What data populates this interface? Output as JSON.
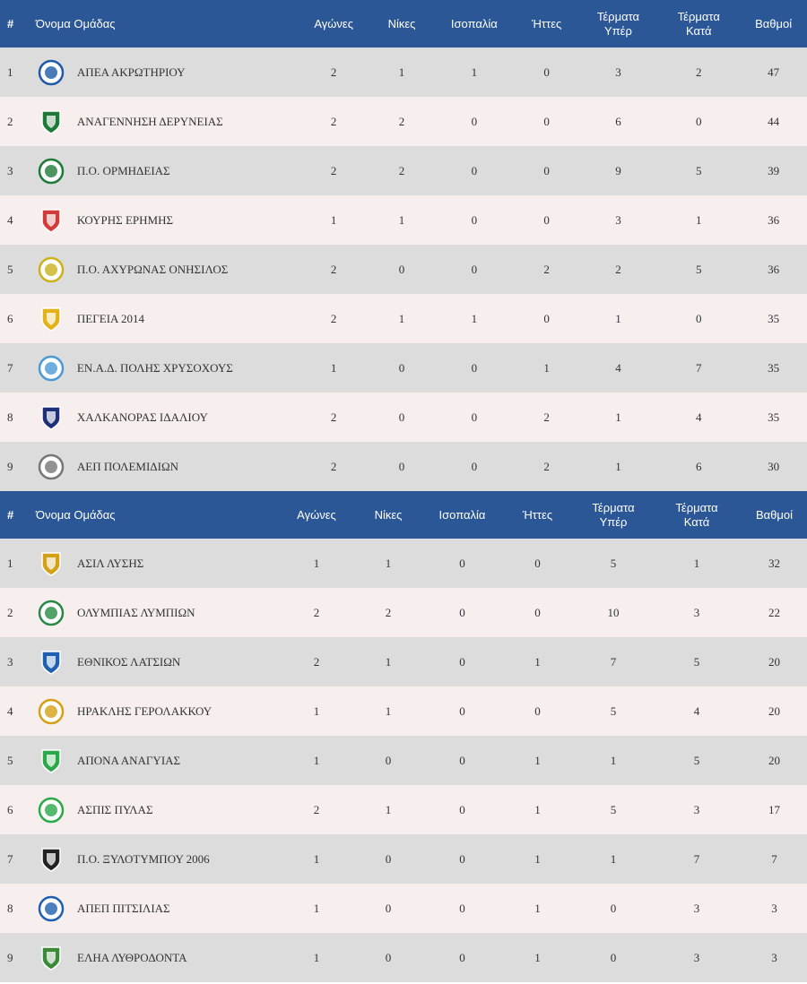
{
  "colors": {
    "header_bg": "#2b5797",
    "row_odd": "#dcdcdc",
    "row_even": "#f7eeee",
    "header_text": "#ffffff",
    "body_text": "#333333"
  },
  "headers": {
    "pos": "#",
    "name": "Όνομα Ομάδας",
    "played": "Αγώνες",
    "wins": "Νίκες",
    "draws": "Ισοπαλία",
    "losses": "Ήττες",
    "goals_for_1": "Τέρματα",
    "goals_for_2": "Υπέρ",
    "goals_against_1": "Τέρματα",
    "goals_against_2": "Κατά",
    "points": "Βαθμοί"
  },
  "tables": [
    {
      "rows": [
        {
          "pos": "1",
          "team": "ΑΠΕΑ ΑΚΡΩΤΗΡΙΟΥ",
          "played": "2",
          "wins": "1",
          "draws": "1",
          "losses": "0",
          "gf": "3",
          "ga": "2",
          "pts": "47",
          "icon": "flamingo-crest-icon",
          "logo_color": "#1e5aa8"
        },
        {
          "pos": "2",
          "team": "ΑΝΑΓΕΝΝΗΣΗ ΔΕΡΥΝΕΙΑΣ",
          "played": "2",
          "wins": "2",
          "draws": "0",
          "losses": "0",
          "gf": "6",
          "ga": "0",
          "pts": "44",
          "icon": "green-shield-icon",
          "logo_color": "#1f7a3a"
        },
        {
          "pos": "3",
          "team": "Π.Ο. ΟΡΜΗΔΕΙΑΣ",
          "played": "2",
          "wins": "2",
          "draws": "0",
          "losses": "0",
          "gf": "9",
          "ga": "5",
          "pts": "39",
          "icon": "green-black-shield-icon",
          "logo_color": "#1f7a3a"
        },
        {
          "pos": "4",
          "team": "ΚΟΥΡΗΣ ΕΡΗΜΗΣ",
          "played": "1",
          "wins": "1",
          "draws": "0",
          "losses": "0",
          "gf": "3",
          "ga": "1",
          "pts": "36",
          "icon": "red-ring-crest-icon",
          "logo_color": "#d23b3b"
        },
        {
          "pos": "5",
          "team": "Π.Ο. ΑΧΥΡΩΝΑΣ ΟΝΗΣΙΛΟΣ",
          "played": "2",
          "wins": "0",
          "draws": "0",
          "losses": "2",
          "gf": "2",
          "ga": "5",
          "pts": "36",
          "icon": "yellow-green-shield-icon",
          "logo_color": "#c9b21a"
        },
        {
          "pos": "6",
          "team": "ΠΕΓΕΙΑ 2014",
          "played": "2",
          "wins": "1",
          "draws": "1",
          "losses": "0",
          "gf": "1",
          "ga": "0",
          "pts": "35",
          "icon": "yellow-black-badge-icon",
          "logo_color": "#e3b21a"
        },
        {
          "pos": "7",
          "team": "ΕΝ.Α.Δ. ΠΟΛΗΣ ΧΡΥΣΟΧΟΥΣ",
          "played": "1",
          "wins": "0",
          "draws": "0",
          "losses": "1",
          "gf": "4",
          "ga": "7",
          "pts": "35",
          "icon": "blue-circle-crest-icon",
          "logo_color": "#4b9ad6"
        },
        {
          "pos": "8",
          "team": "ΧΑΛΚΑΝΟΡΑΣ ΙΔΑΛΙΟΥ",
          "played": "2",
          "wins": "0",
          "draws": "0",
          "losses": "2",
          "gf": "1",
          "ga": "4",
          "pts": "35",
          "icon": "navy-circle-crest-icon",
          "logo_color": "#1f2f7a"
        },
        {
          "pos": "9",
          "team": "ΑΕΠ ΠΟΛΕΜΙΔΙΩΝ",
          "played": "2",
          "wins": "0",
          "draws": "0",
          "losses": "2",
          "gf": "1",
          "ga": "6",
          "pts": "30",
          "icon": "white-circle-crest-icon",
          "logo_color": "#777777"
        }
      ]
    },
    {
      "rows": [
        {
          "pos": "1",
          "team": "ΑΣΙΛ ΛΥΣΗΣ",
          "played": "1",
          "wins": "1",
          "draws": "0",
          "losses": "0",
          "gf": "5",
          "ga": "1",
          "pts": "32",
          "icon": "black-gold-circle-crest-icon",
          "logo_color": "#d4a017"
        },
        {
          "pos": "2",
          "team": "ΟΛΥΜΠΙΑΣ ΛΥΜΠΙΩΝ",
          "played": "2",
          "wins": "2",
          "draws": "0",
          "losses": "0",
          "gf": "10",
          "ga": "3",
          "pts": "22",
          "icon": "green-circle-crest-icon",
          "logo_color": "#2a8a45"
        },
        {
          "pos": "3",
          "team": "ΕΘΝΙΚΟΣ ΛΑΤΣΙΩΝ",
          "played": "2",
          "wins": "1",
          "draws": "0",
          "losses": "1",
          "gf": "7",
          "ga": "5",
          "pts": "20",
          "icon": "blue-striped-shield-icon",
          "logo_color": "#1f5fb0"
        },
        {
          "pos": "4",
          "team": "ΗΡΑΚΛΗΣ ΓΕΡΟΛΑΚΚΟΥ",
          "played": "1",
          "wins": "1",
          "draws": "0",
          "losses": "0",
          "gf": "5",
          "ga": "4",
          "pts": "20",
          "icon": "gold-navy-shield-icon",
          "logo_color": "#d4a017"
        },
        {
          "pos": "5",
          "team": "ΑΠΟΝΑ ΑΝΑΓΥΙΑΣ",
          "played": "1",
          "wins": "0",
          "draws": "0",
          "losses": "1",
          "gf": "1",
          "ga": "5",
          "pts": "20",
          "icon": "green-white-shield-icon",
          "logo_color": "#2aa84a"
        },
        {
          "pos": "6",
          "team": "ΑΣΠΙΣ ΠΥΛΑΣ",
          "played": "2",
          "wins": "1",
          "draws": "0",
          "losses": "1",
          "gf": "5",
          "ga": "3",
          "pts": "17",
          "icon": "green-striped-shield-icon",
          "logo_color": "#2aa84a"
        },
        {
          "pos": "7",
          "team": "Π.Ο. ΞΥΛΟΤΥΜΠΟΥ 2006",
          "played": "1",
          "wins": "0",
          "draws": "0",
          "losses": "1",
          "gf": "1",
          "ga": "7",
          "pts": "7",
          "icon": "black-white-striped-shield-icon",
          "logo_color": "#222222"
        },
        {
          "pos": "8",
          "team": "ΑΠΕΠ ΠΙΤΣΙΛΙΑΣ",
          "played": "1",
          "wins": "0",
          "draws": "0",
          "losses": "1",
          "gf": "0",
          "ga": "3",
          "pts": "3",
          "icon": "blue-white-shield-icon",
          "logo_color": "#1f5fb0"
        },
        {
          "pos": "9",
          "team": "ΕΛΗΑ ΛΥΘΡΟΔΟΝΤΑ",
          "played": "1",
          "wins": "0",
          "draws": "0",
          "losses": "1",
          "gf": "0",
          "ga": "3",
          "pts": "3",
          "icon": "olive-branch-crest-icon",
          "logo_color": "#3a8a3a"
        }
      ]
    }
  ]
}
